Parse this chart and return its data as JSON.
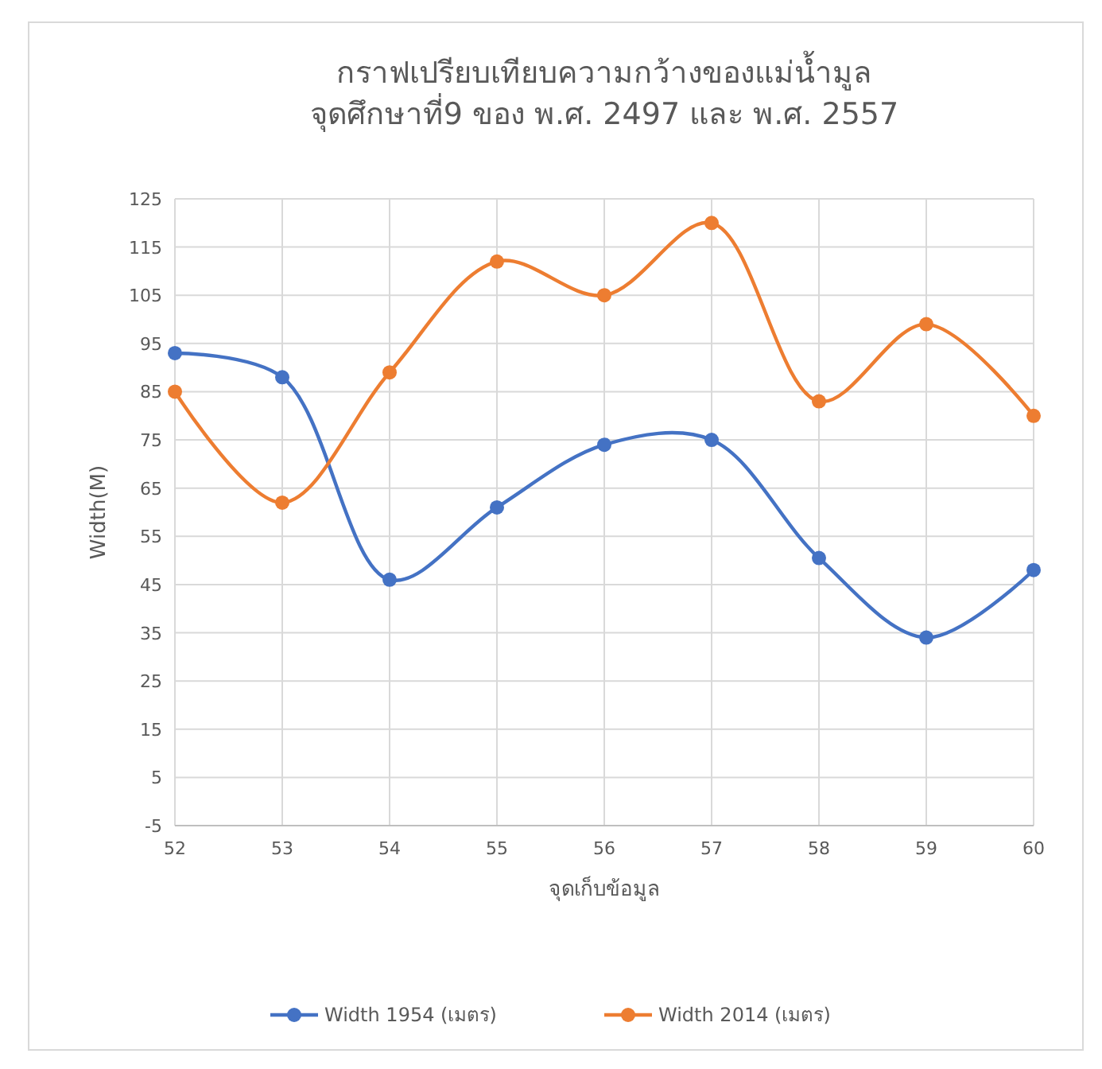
{
  "chart_data": {
    "type": "line",
    "title": "กราฟเปรียบเทียบความกว้างของแม่น้ำมูล\nจุดศึกษาที่9 ของ พ.ศ. 2497 และ พ.ศ. 2557",
    "xlabel": "จุดเก็บข้อมูล",
    "ylabel": "Width(M)",
    "categories": [
      "52",
      "53",
      "54",
      "55",
      "56",
      "57",
      "58",
      "59",
      "60"
    ],
    "series": [
      {
        "name": "Width 1954 (เมตร)",
        "color": "#4472c4",
        "values": [
          93,
          88,
          46,
          61,
          74,
          75,
          50.5,
          34,
          48
        ]
      },
      {
        "name": "Width 2014 (เมตร)",
        "color": "#ed7d31",
        "values": [
          85,
          62,
          89,
          112,
          105,
          120,
          83,
          99,
          80
        ]
      }
    ],
    "ylim": [
      -5,
      125
    ],
    "yticks": [
      -5,
      5,
      15,
      25,
      35,
      45,
      55,
      65,
      75,
      85,
      95,
      105,
      115,
      125
    ],
    "grid": true,
    "legend": "bottom",
    "marker": "circle",
    "line_style": "solid"
  }
}
